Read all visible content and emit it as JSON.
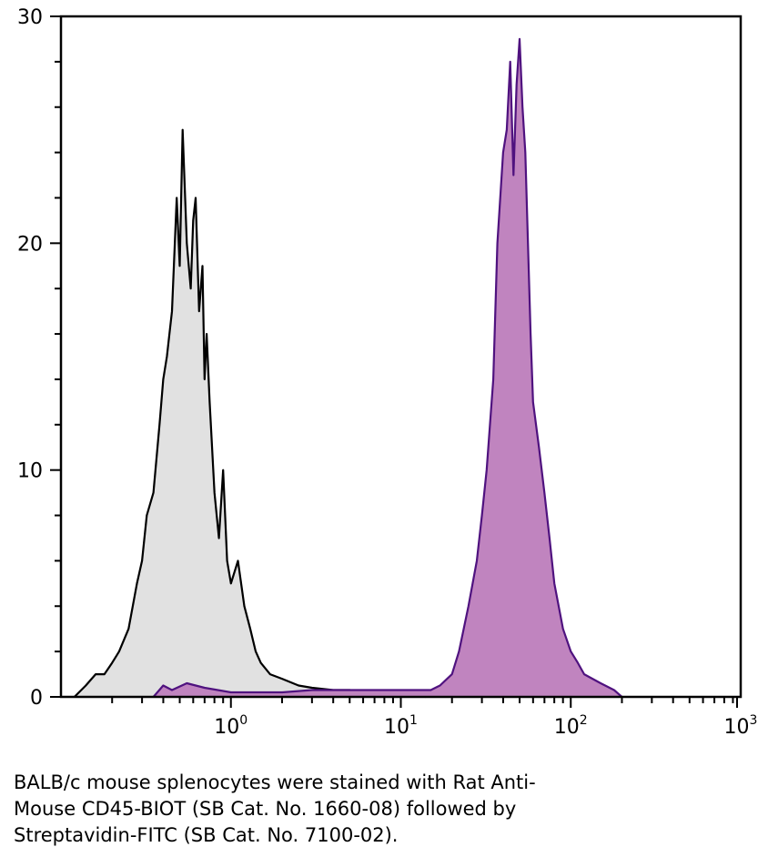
{
  "chart_data": {
    "type": "area",
    "x_scale": "log",
    "xlim": [
      0.1,
      1000
    ],
    "ylim": [
      0,
      30
    ],
    "grid": false,
    "legend": "none",
    "y_ticks": [
      "0",
      "10",
      "20",
      "30"
    ],
    "x_ticks": [
      {
        "base": "10",
        "exp": "0"
      },
      {
        "base": "10",
        "exp": "1"
      },
      {
        "base": "10",
        "exp": "2"
      },
      {
        "base": "10",
        "exp": "3"
      }
    ],
    "series": [
      {
        "color": "#000000",
        "fill": "#e1e1e1",
        "x": [
          0.12,
          0.14,
          0.16,
          0.18,
          0.2,
          0.22,
          0.25,
          0.28,
          0.3,
          0.32,
          0.35,
          0.38,
          0.4,
          0.42,
          0.45,
          0.48,
          0.5,
          0.52,
          0.55,
          0.58,
          0.6,
          0.62,
          0.65,
          0.68,
          0.7,
          0.72,
          0.75,
          0.8,
          0.85,
          0.9,
          0.95,
          1.0,
          1.1,
          1.2,
          1.3,
          1.4,
          1.5,
          1.7,
          2.0,
          2.5,
          3,
          4,
          5,
          6,
          7,
          8,
          9,
          10,
          12,
          14
        ],
        "y": [
          0,
          0.5,
          1,
          1,
          1.5,
          2,
          3,
          5,
          6,
          8,
          9,
          12,
          14,
          15,
          17,
          22,
          19,
          25,
          20,
          18,
          21,
          22,
          17,
          19,
          14,
          16,
          13,
          9,
          7,
          10,
          6,
          5,
          6,
          4,
          3,
          2,
          1.5,
          1,
          0.8,
          0.5,
          0.4,
          0.3,
          0.3,
          0.2,
          0.2,
          0.2,
          0.2,
          0.2,
          0.1,
          0
        ]
      },
      {
        "color": "#4f127f",
        "fill": "#c084bf",
        "x": [
          0.35,
          0.4,
          0.45,
          0.55,
          0.7,
          1.0,
          2,
          3,
          5,
          8,
          10,
          12,
          15,
          17,
          20,
          22,
          25,
          28,
          30,
          32,
          35,
          37,
          40,
          42,
          44,
          46,
          48,
          50,
          52,
          54,
          56,
          58,
          60,
          65,
          70,
          75,
          80,
          90,
          100,
          110,
          120,
          150,
          180,
          200
        ],
        "y": [
          0,
          0.5,
          0.3,
          0.6,
          0.4,
          0.2,
          0.2,
          0.3,
          0.3,
          0.3,
          0.3,
          0.3,
          0.3,
          0.5,
          1,
          2,
          4,
          6,
          8,
          10,
          14,
          20,
          24,
          25,
          28,
          23,
          27,
          29,
          26,
          24,
          20,
          16,
          13,
          11,
          9,
          7,
          5,
          3,
          2,
          1.5,
          1,
          0.6,
          0.3,
          0
        ]
      }
    ]
  },
  "caption": {
    "line1": "BALB/c mouse splenocytes were stained with Rat Anti-",
    "line2": "Mouse CD45-BIOT (SB Cat. No. 1660-08) followed by",
    "line3": "Streptavidin-FITC (SB Cat. No. 7100-02)."
  }
}
